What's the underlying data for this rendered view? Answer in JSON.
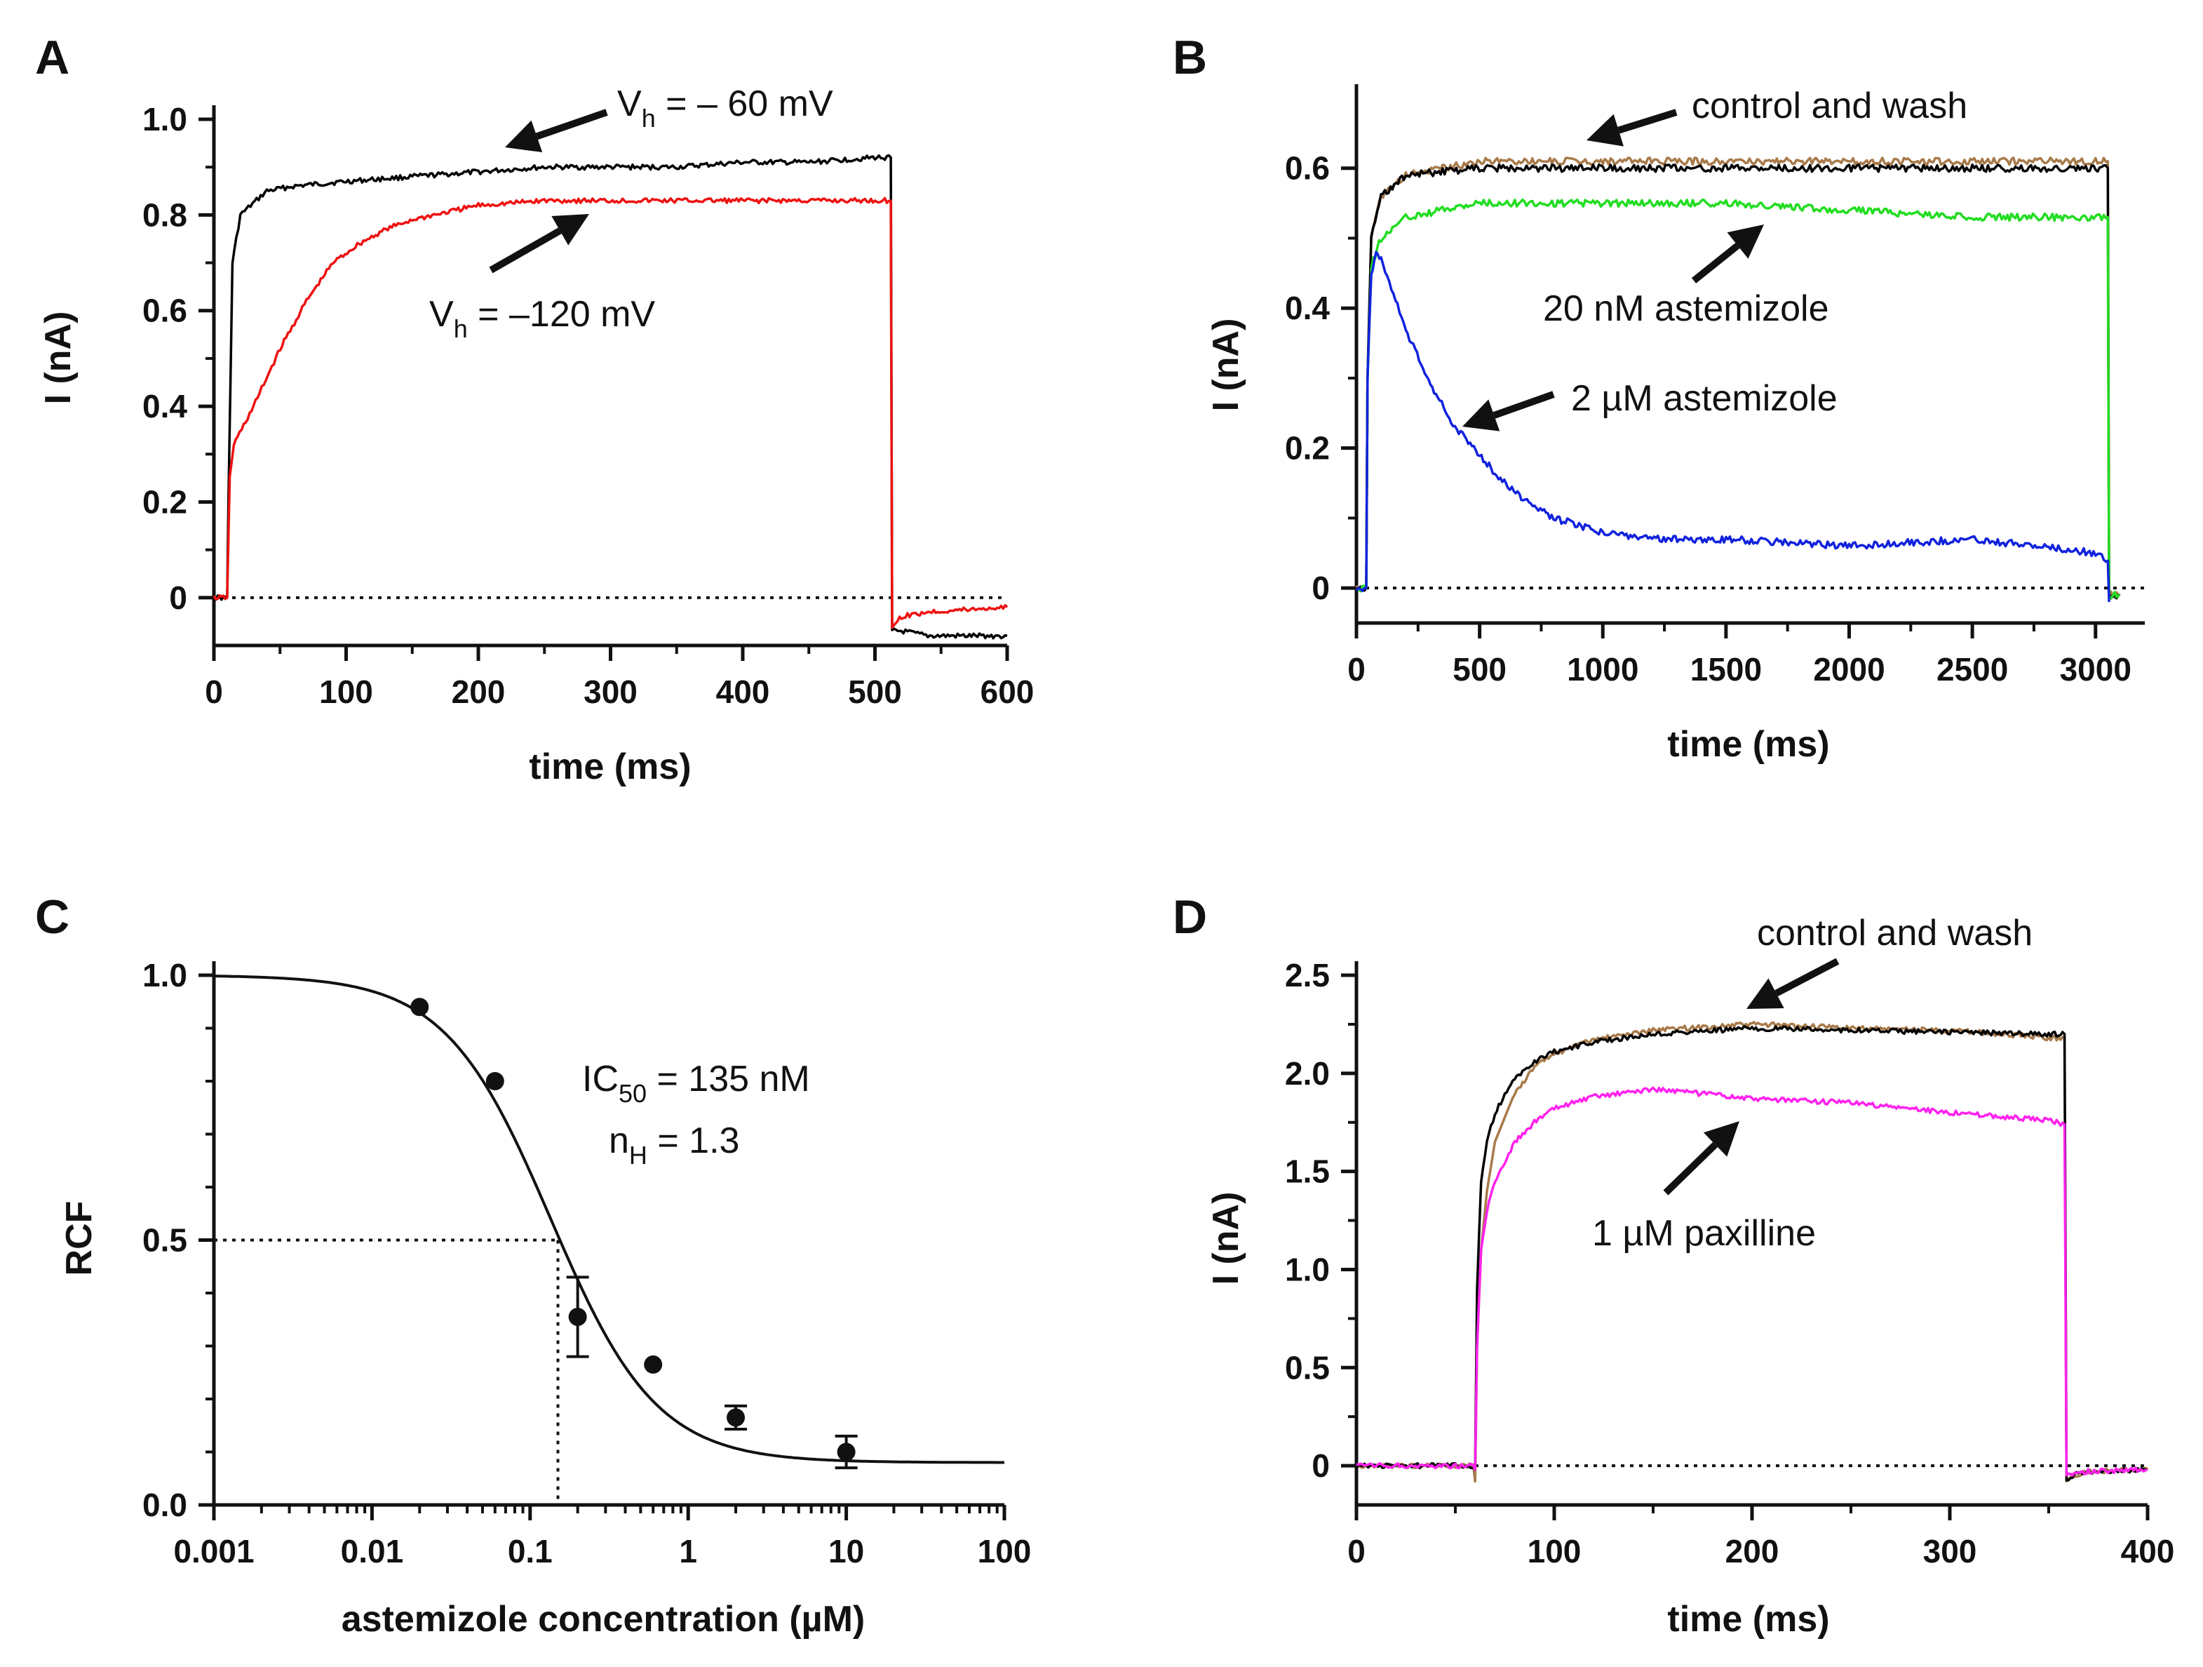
{
  "chart_data": [
    {
      "panel": "A",
      "type": "line",
      "xlabel": "time (ms)",
      "ylabel": "I (nA)",
      "xlim": [
        0,
        600
      ],
      "ylim": [
        -0.1,
        1.0
      ],
      "xticks": [
        0,
        100,
        200,
        300,
        400,
        500,
        600
      ],
      "yticks": [
        0,
        0.2,
        0.4,
        0.6,
        0.8,
        1.0
      ],
      "ytick_labels": [
        "0",
        "0.2",
        "0.4",
        "0.6",
        "0.8",
        "1.0"
      ],
      "zero_line": true,
      "series": [
        {
          "name": "Vh = -60 mV",
          "color": "#000000",
          "x": [
            0,
            10,
            11,
            14,
            20,
            40,
            60,
            100,
            150,
            200,
            250,
            300,
            350,
            400,
            450,
            500,
            512,
            513,
            520,
            540,
            600
          ],
          "y": [
            0,
            0,
            0.2,
            0.7,
            0.8,
            0.85,
            0.86,
            0.87,
            0.88,
            0.89,
            0.9,
            0.9,
            0.9,
            0.91,
            0.91,
            0.92,
            0.92,
            -0.07,
            -0.07,
            -0.08,
            -0.08
          ]
        },
        {
          "name": "Vh = -120 mV",
          "color": "#ee1111",
          "x": [
            0,
            10,
            12,
            15,
            30,
            50,
            70,
            90,
            110,
            130,
            150,
            200,
            250,
            300,
            350,
            400,
            450,
            500,
            512,
            513,
            520,
            540,
            600
          ],
          "y": [
            0,
            0,
            0.25,
            0.32,
            0.4,
            0.52,
            0.62,
            0.7,
            0.74,
            0.77,
            0.79,
            0.82,
            0.83,
            0.83,
            0.83,
            0.83,
            0.83,
            0.83,
            0.83,
            -0.06,
            -0.04,
            -0.03,
            -0.02
          ]
        }
      ],
      "annotations": [
        {
          "main": "V",
          "sub": "h",
          "rest": " = – 60 mV"
        },
        {
          "main": "V",
          "sub": "h",
          "rest": " = –120 mV"
        }
      ]
    },
    {
      "panel": "B",
      "type": "line",
      "xlabel": "time (ms)",
      "ylabel": "I (nA)",
      "xlim": [
        0,
        3200
      ],
      "ylim": [
        -0.05,
        0.7
      ],
      "xticks": [
        0,
        500,
        1000,
        1500,
        2000,
        2500,
        3000
      ],
      "yticks": [
        0,
        0.2,
        0.4,
        0.6
      ],
      "ytick_labels": [
        "0",
        "0.2",
        "0.4",
        "0.6"
      ],
      "zero_line": true,
      "series": [
        {
          "name": "control",
          "color": "#a87a4a",
          "x": [
            0,
            40,
            45,
            60,
            100,
            200,
            500,
            1000,
            1500,
            2000,
            2500,
            3000,
            3050,
            3055,
            3100
          ],
          "y": [
            0,
            0,
            0.3,
            0.5,
            0.56,
            0.59,
            0.61,
            0.61,
            0.61,
            0.61,
            0.61,
            0.61,
            0.61,
            -0.01,
            -0.01
          ]
        },
        {
          "name": "wash",
          "color": "#000000",
          "x": [
            0,
            40,
            45,
            60,
            100,
            200,
            500,
            1000,
            1500,
            2000,
            2500,
            3000,
            3050,
            3055,
            3100
          ],
          "y": [
            0,
            0,
            0.3,
            0.5,
            0.56,
            0.59,
            0.6,
            0.6,
            0.6,
            0.6,
            0.6,
            0.6,
            0.6,
            -0.01,
            -0.01
          ]
        },
        {
          "name": "20 nM astemizole",
          "color": "#22dd22",
          "x": [
            0,
            40,
            45,
            60,
            100,
            200,
            500,
            1000,
            1500,
            2000,
            2500,
            3000,
            3050,
            3055,
            3100
          ],
          "y": [
            0,
            0,
            0.3,
            0.46,
            0.5,
            0.53,
            0.55,
            0.55,
            0.55,
            0.54,
            0.53,
            0.53,
            0.53,
            -0.01,
            -0.01
          ]
        },
        {
          "name": "2 µM astemizole",
          "color": "#1122dd",
          "x": [
            0,
            40,
            45,
            60,
            80,
            100,
            150,
            200,
            300,
            400,
            500,
            600,
            700,
            800,
            1000,
            1200,
            1500,
            2000,
            2500,
            3000,
            3050,
            3055
          ],
          "y": [
            0,
            0,
            0.3,
            0.45,
            0.48,
            0.47,
            0.42,
            0.37,
            0.29,
            0.23,
            0.19,
            0.15,
            0.12,
            0.1,
            0.08,
            0.07,
            0.07,
            0.06,
            0.07,
            0.05,
            0.04,
            -0.02
          ]
        }
      ],
      "annotations": [
        "control and wash",
        "20 nM astemizole",
        "2 µM astemizole"
      ]
    },
    {
      "panel": "C",
      "type": "scatter",
      "xlabel": "astemizole concentration (µM)",
      "ylabel": "RCF",
      "xscale": "log",
      "xlim": [
        0.001,
        100
      ],
      "ylim": [
        0,
        1.0
      ],
      "xticks": [
        0.001,
        0.01,
        0.1,
        1,
        10,
        100
      ],
      "xtick_labels": [
        "0.001",
        "0.01",
        "0.1",
        "1",
        "10",
        "100"
      ],
      "yticks": [
        0,
        0.5,
        1.0
      ],
      "ytick_labels": [
        "0.0",
        "0.5",
        "1.0"
      ],
      "points": [
        {
          "x": 0.02,
          "y": 0.94,
          "err": 0
        },
        {
          "x": 0.06,
          "y": 0.8,
          "err": 0
        },
        {
          "x": 0.2,
          "y": 0.355,
          "err": 0.075
        },
        {
          "x": 0.6,
          "y": 0.265,
          "err": 0
        },
        {
          "x": 2,
          "y": 0.165,
          "err": 0.022
        },
        {
          "x": 10,
          "y": 0.1,
          "err": 0.03
        }
      ],
      "fit": {
        "ic50": 0.135,
        "hill": 1.3,
        "bottom": 0.08,
        "top": 1.0
      },
      "guide": {
        "x": 0.15,
        "y": 0.5
      },
      "annotations": [
        {
          "main": "IC",
          "sub": "50",
          "rest": " = 135 nM"
        },
        {
          "main": "n",
          "sub": "H",
          "rest": " = 1.3"
        }
      ]
    },
    {
      "panel": "D",
      "type": "line",
      "xlabel": "time (ms)",
      "ylabel": "I (nA)",
      "xlim": [
        0,
        400
      ],
      "ylim": [
        -0.2,
        2.5
      ],
      "xticks": [
        0,
        100,
        200,
        300,
        400
      ],
      "yticks": [
        0,
        0.5,
        1.0,
        1.5,
        2.0,
        2.5
      ],
      "ytick_labels": [
        "0",
        "0.5",
        "1.0",
        "1.5",
        "2.0",
        "2.5"
      ],
      "zero_line": true,
      "series": [
        {
          "name": "control",
          "color": "#a87a4a",
          "x": [
            0,
            59,
            60,
            61,
            63,
            66,
            70,
            80,
            90,
            100,
            120,
            150,
            200,
            250,
            300,
            350,
            358,
            359,
            362,
            370,
            400
          ],
          "y": [
            0,
            0,
            -0.08,
            0.6,
            1.1,
            1.4,
            1.65,
            1.9,
            2.03,
            2.1,
            2.17,
            2.22,
            2.25,
            2.23,
            2.22,
            2.18,
            2.18,
            -0.08,
            -0.05,
            -0.03,
            -0.02
          ]
        },
        {
          "name": "wash",
          "color": "#000000",
          "x": [
            0,
            59,
            60,
            61,
            63,
            66,
            70,
            80,
            90,
            100,
            120,
            150,
            200,
            250,
            300,
            350,
            358,
            359,
            362,
            370,
            400
          ],
          "y": [
            0,
            0,
            -0.02,
            0.9,
            1.45,
            1.65,
            1.8,
            1.97,
            2.06,
            2.11,
            2.16,
            2.2,
            2.23,
            2.22,
            2.21,
            2.2,
            2.2,
            -0.08,
            -0.05,
            -0.03,
            -0.02
          ]
        },
        {
          "name": "1 µM paxilline",
          "color": "#ff22ee",
          "x": [
            0,
            59,
            60,
            61,
            63,
            66,
            70,
            80,
            90,
            100,
            120,
            150,
            200,
            250,
            300,
            350,
            358,
            359,
            362,
            370,
            400
          ],
          "y": [
            0,
            0,
            -0.02,
            0.6,
            1.1,
            1.3,
            1.45,
            1.65,
            1.75,
            1.82,
            1.88,
            1.92,
            1.87,
            1.85,
            1.8,
            1.76,
            1.74,
            -0.06,
            -0.04,
            -0.03,
            -0.02
          ]
        }
      ],
      "annotations": [
        "control and wash",
        "1 µM paxilline"
      ]
    }
  ],
  "panel_labels": [
    "A",
    "B",
    "C",
    "D"
  ]
}
